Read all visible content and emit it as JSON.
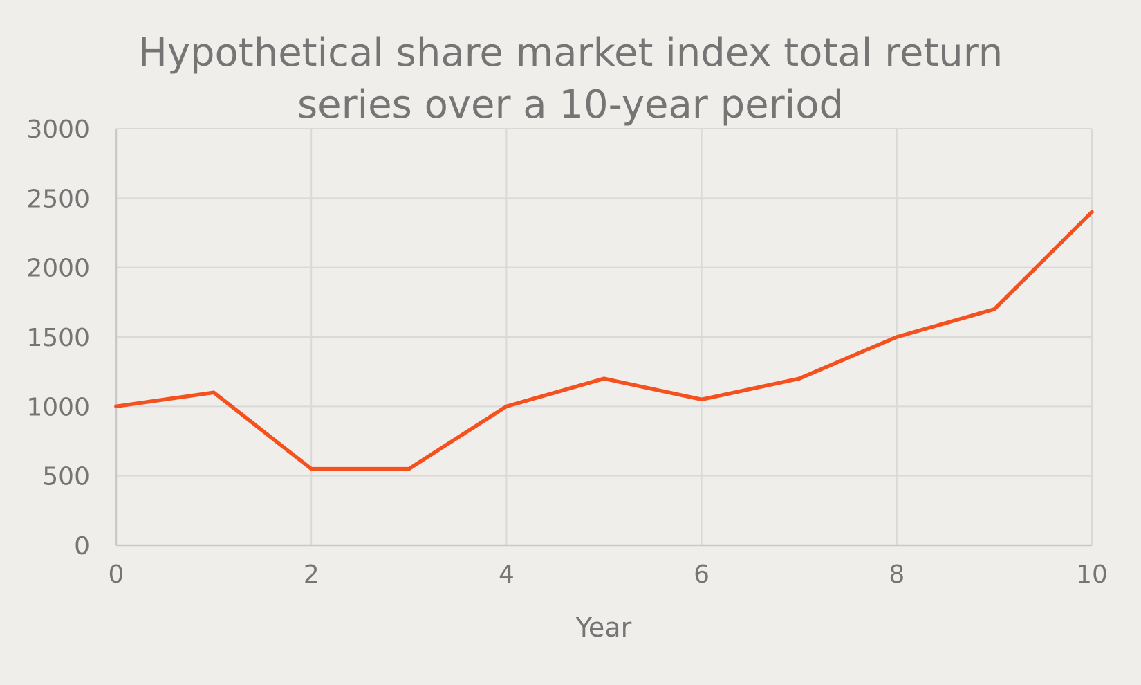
{
  "chart_data": {
    "type": "line",
    "title_lines": [
      "Hypothetical share market index total return",
      "series over a 10-year period"
    ],
    "xlabel": "Year",
    "ylabel": "",
    "xlim": [
      0,
      10
    ],
    "ylim": [
      0,
      3000
    ],
    "x_ticks": [
      0,
      2,
      4,
      6,
      8,
      10
    ],
    "y_ticks": [
      0,
      500,
      1000,
      1500,
      2000,
      2500,
      3000
    ],
    "grid": true,
    "legend": "none",
    "series": [
      {
        "color": "#f4511e",
        "points": [
          {
            "x": 0,
            "y": 1000
          },
          {
            "x": 1,
            "y": 1100
          },
          {
            "x": 2,
            "y": 550
          },
          {
            "x": 3,
            "y": 550
          },
          {
            "x": 4,
            "y": 1000
          },
          {
            "x": 5,
            "y": 1200
          },
          {
            "x": 6,
            "y": 1050
          },
          {
            "x": 7,
            "y": 1200
          },
          {
            "x": 8,
            "y": 1500
          },
          {
            "x": 9,
            "y": 1700
          },
          {
            "x": 10,
            "y": 2400
          }
        ]
      }
    ]
  }
}
